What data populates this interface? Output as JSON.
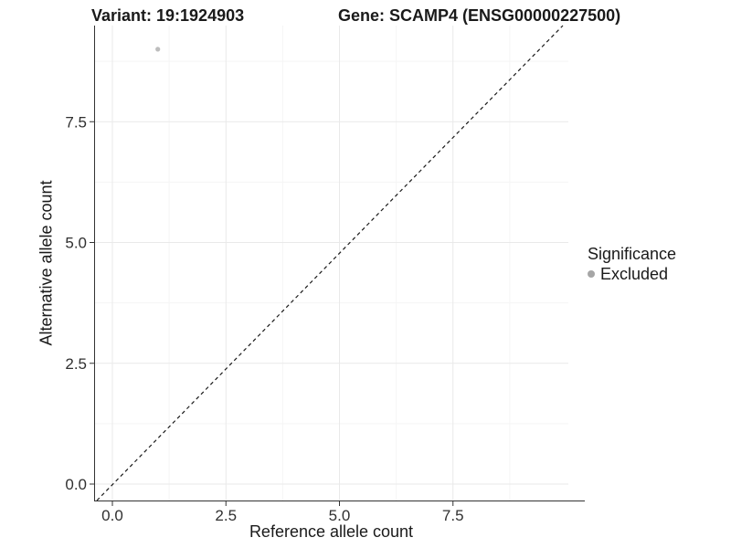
{
  "title": {
    "variant": "Variant: 19:1924903",
    "gene": "Gene: SCAMP4 (ENSG00000227500)"
  },
  "axes": {
    "x": {
      "label": "Reference allele count",
      "tick_labels": [
        "0.0",
        "2.5",
        "5.0",
        "7.5"
      ],
      "tick_values": [
        0,
        2.5,
        5,
        7.5
      ],
      "minor_values": [
        1.25,
        3.75,
        6.25,
        8.75
      ]
    },
    "y": {
      "label": "Alternative allele count",
      "tick_labels": [
        "0.0",
        "2.5",
        "5.0",
        "7.5"
      ],
      "tick_values": [
        0,
        2.5,
        5,
        7.5
      ],
      "minor_values": [
        1.25,
        3.75,
        6.25,
        8.75
      ]
    }
  },
  "legend": {
    "title": "Significance",
    "items": [
      {
        "label": "Excluded",
        "color": "#a6a6a6"
      }
    ]
  },
  "chart_data": {
    "type": "scatter",
    "title": "Variant: 19:1924903   Gene: SCAMP4 (ENSG00000227500)",
    "xlabel": "Reference allele count",
    "ylabel": "Alternative allele count",
    "xlim": [
      -0.4,
      10.0
    ],
    "ylim": [
      -0.35,
      9.5
    ],
    "grid": "major+minor",
    "legend_position": "right",
    "series": [
      {
        "name": "Excluded",
        "color": "#bdbdbd",
        "points": [
          {
            "x": 1,
            "y": 9
          }
        ]
      }
    ],
    "reference_line": {
      "type": "identity",
      "slope": 1,
      "intercept": 0,
      "linetype": "dashed",
      "color": "#1a1a1a"
    }
  }
}
